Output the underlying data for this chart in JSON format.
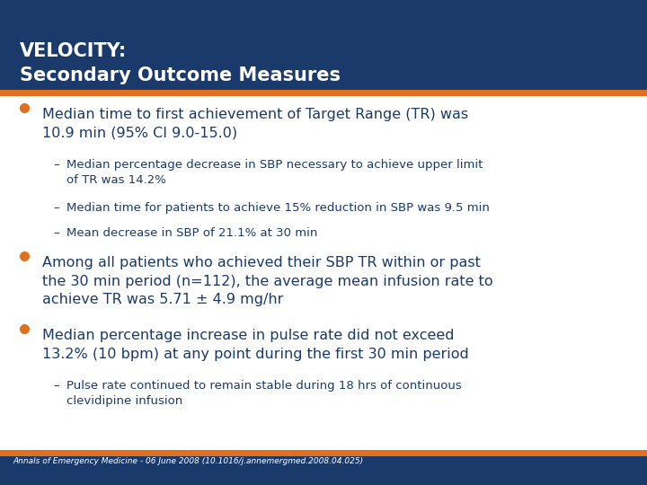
{
  "header_bg": "#1a3a6b",
  "header_text_color": "#ffffff",
  "title_line1": "VELOCITY:",
  "title_line2": "Secondary Outcome Measures",
  "orange_bar_color": "#e07020",
  "body_bg": "#ffffff",
  "bullet_color": "#e07020",
  "dark_blue": "#1a3a6b",
  "bullet1_main": "Median time to first achievement of Target Range (TR) was\n10.9 min (95% CI 9.0-15.0)",
  "bullet1_subs": [
    "Median percentage decrease in SBP necessary to achieve upper limit\nof TR was 14.2%",
    "Median time for patients to achieve 15% reduction in SBP was 9.5 min",
    "Mean decrease in SBP of 21.1% at 30 min"
  ],
  "bullet2_main": "Among all patients who achieved their SBP TR within or past\nthe 30 min period (n=112), the average mean infusion rate to\nachieve TR was 5.71 ± 4.9 mg/hr",
  "bullet3_main": "Median percentage increase in pulse rate did not exceed\n13.2% (10 bpm) at any point during the first 30 min period",
  "bullet3_subs": [
    "Pulse rate continued to remain stable during 18 hrs of continuous\nclevidipine infusion"
  ],
  "footer_text": "Annals of Emergency Medicine - 06 June 2008 (10.1016/j.annemergmed.2008.04.025)",
  "footer_bg": "#1a3a6b"
}
